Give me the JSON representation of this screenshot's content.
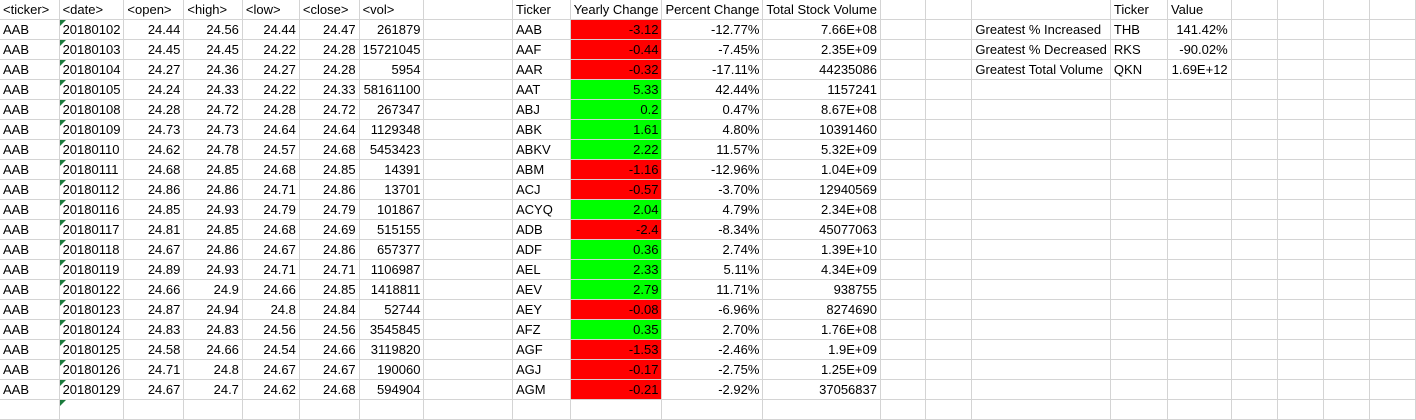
{
  "sheet": {
    "headers": [
      "<ticker>",
      "<date>",
      "<open>",
      "<high>",
      "<low>",
      "<close>",
      "<vol>"
    ],
    "rows": [
      [
        "AAB",
        "20180102",
        "24.44",
        "24.56",
        "24.44",
        "24.47",
        "261879"
      ],
      [
        "AAB",
        "20180103",
        "24.45",
        "24.45",
        "24.22",
        "24.28",
        "15721045"
      ],
      [
        "AAB",
        "20180104",
        "24.27",
        "24.36",
        "24.27",
        "24.28",
        "5954"
      ],
      [
        "AAB",
        "20180105",
        "24.24",
        "24.33",
        "24.22",
        "24.33",
        "58161100"
      ],
      [
        "AAB",
        "20180108",
        "24.28",
        "24.72",
        "24.28",
        "24.72",
        "267347"
      ],
      [
        "AAB",
        "20180109",
        "24.73",
        "24.73",
        "24.64",
        "24.64",
        "1129348"
      ],
      [
        "AAB",
        "20180110",
        "24.62",
        "24.78",
        "24.57",
        "24.68",
        "5453423"
      ],
      [
        "AAB",
        "20180111",
        "24.68",
        "24.85",
        "24.68",
        "24.85",
        "14391"
      ],
      [
        "AAB",
        "20180112",
        "24.86",
        "24.86",
        "24.71",
        "24.86",
        "13701"
      ],
      [
        "AAB",
        "20180116",
        "24.85",
        "24.93",
        "24.79",
        "24.79",
        "101867"
      ],
      [
        "AAB",
        "20180117",
        "24.81",
        "24.85",
        "24.68",
        "24.69",
        "515155"
      ],
      [
        "AAB",
        "20180118",
        "24.67",
        "24.86",
        "24.67",
        "24.86",
        "657377"
      ],
      [
        "AAB",
        "20180119",
        "24.89",
        "24.93",
        "24.71",
        "24.71",
        "1106987"
      ],
      [
        "AAB",
        "20180122",
        "24.66",
        "24.9",
        "24.66",
        "24.85",
        "1418811"
      ],
      [
        "AAB",
        "20180123",
        "24.87",
        "24.94",
        "24.8",
        "24.84",
        "52744"
      ],
      [
        "AAB",
        "20180124",
        "24.83",
        "24.83",
        "24.56",
        "24.56",
        "3545845"
      ],
      [
        "AAB",
        "20180125",
        "24.58",
        "24.66",
        "24.54",
        "24.66",
        "3119820"
      ],
      [
        "AAB",
        "20180126",
        "24.71",
        "24.8",
        "24.67",
        "24.67",
        "190060"
      ],
      [
        "AAB",
        "20180129",
        "24.67",
        "24.7",
        "24.62",
        "24.68",
        "594904"
      ]
    ]
  },
  "summary": {
    "headers": [
      "Ticker",
      "Yearly Change",
      "Percent Change",
      "Total Stock Volume"
    ],
    "rows": [
      [
        "AAB",
        "-3.12",
        "-12.77%",
        "7.66E+08"
      ],
      [
        "AAF",
        "-0.44",
        "-7.45%",
        "2.35E+09"
      ],
      [
        "AAR",
        "-0.32",
        "-17.11%",
        "44235086"
      ],
      [
        "AAT",
        "5.33",
        "42.44%",
        "1157241"
      ],
      [
        "ABJ",
        "0.2",
        "0.47%",
        "8.67E+08"
      ],
      [
        "ABK",
        "1.61",
        "4.80%",
        "10391460"
      ],
      [
        "ABKV",
        "2.22",
        "11.57%",
        "5.32E+09"
      ],
      [
        "ABM",
        "-1.16",
        "-12.96%",
        "1.04E+09"
      ],
      [
        "ACJ",
        "-0.57",
        "-3.70%",
        "12940569"
      ],
      [
        "ACYQ",
        "2.04",
        "4.79%",
        "2.34E+08"
      ],
      [
        "ADB",
        "-2.4",
        "-8.34%",
        "45077063"
      ],
      [
        "ADF",
        "0.36",
        "2.74%",
        "1.39E+10"
      ],
      [
        "AEL",
        "2.33",
        "5.11%",
        "4.34E+09"
      ],
      [
        "AEV",
        "2.79",
        "11.71%",
        "938755"
      ],
      [
        "AEY",
        "-0.08",
        "-6.96%",
        "8274690"
      ],
      [
        "AFZ",
        "0.35",
        "2.70%",
        "1.76E+08"
      ],
      [
        "AGF",
        "-1.53",
        "-2.46%",
        "1.9E+09"
      ],
      [
        "AGJ",
        "-0.17",
        "-2.75%",
        "1.25E+09"
      ],
      [
        "AGM",
        "-0.21",
        "-2.92%",
        "37056837"
      ]
    ]
  },
  "greatest": {
    "headers": [
      "Ticker",
      "Value"
    ],
    "rows": [
      [
        "Greatest % Increased",
        "THB",
        "141.42%"
      ],
      [
        "Greatest % Decreased",
        "RKS",
        "-90.02%"
      ],
      [
        "Greatest Total Volume",
        "QKN",
        "1.69E+12"
      ]
    ]
  },
  "colors": {
    "negative": "#ff0000",
    "positive": "#00ff00",
    "gridline": "#d4d4d4"
  }
}
